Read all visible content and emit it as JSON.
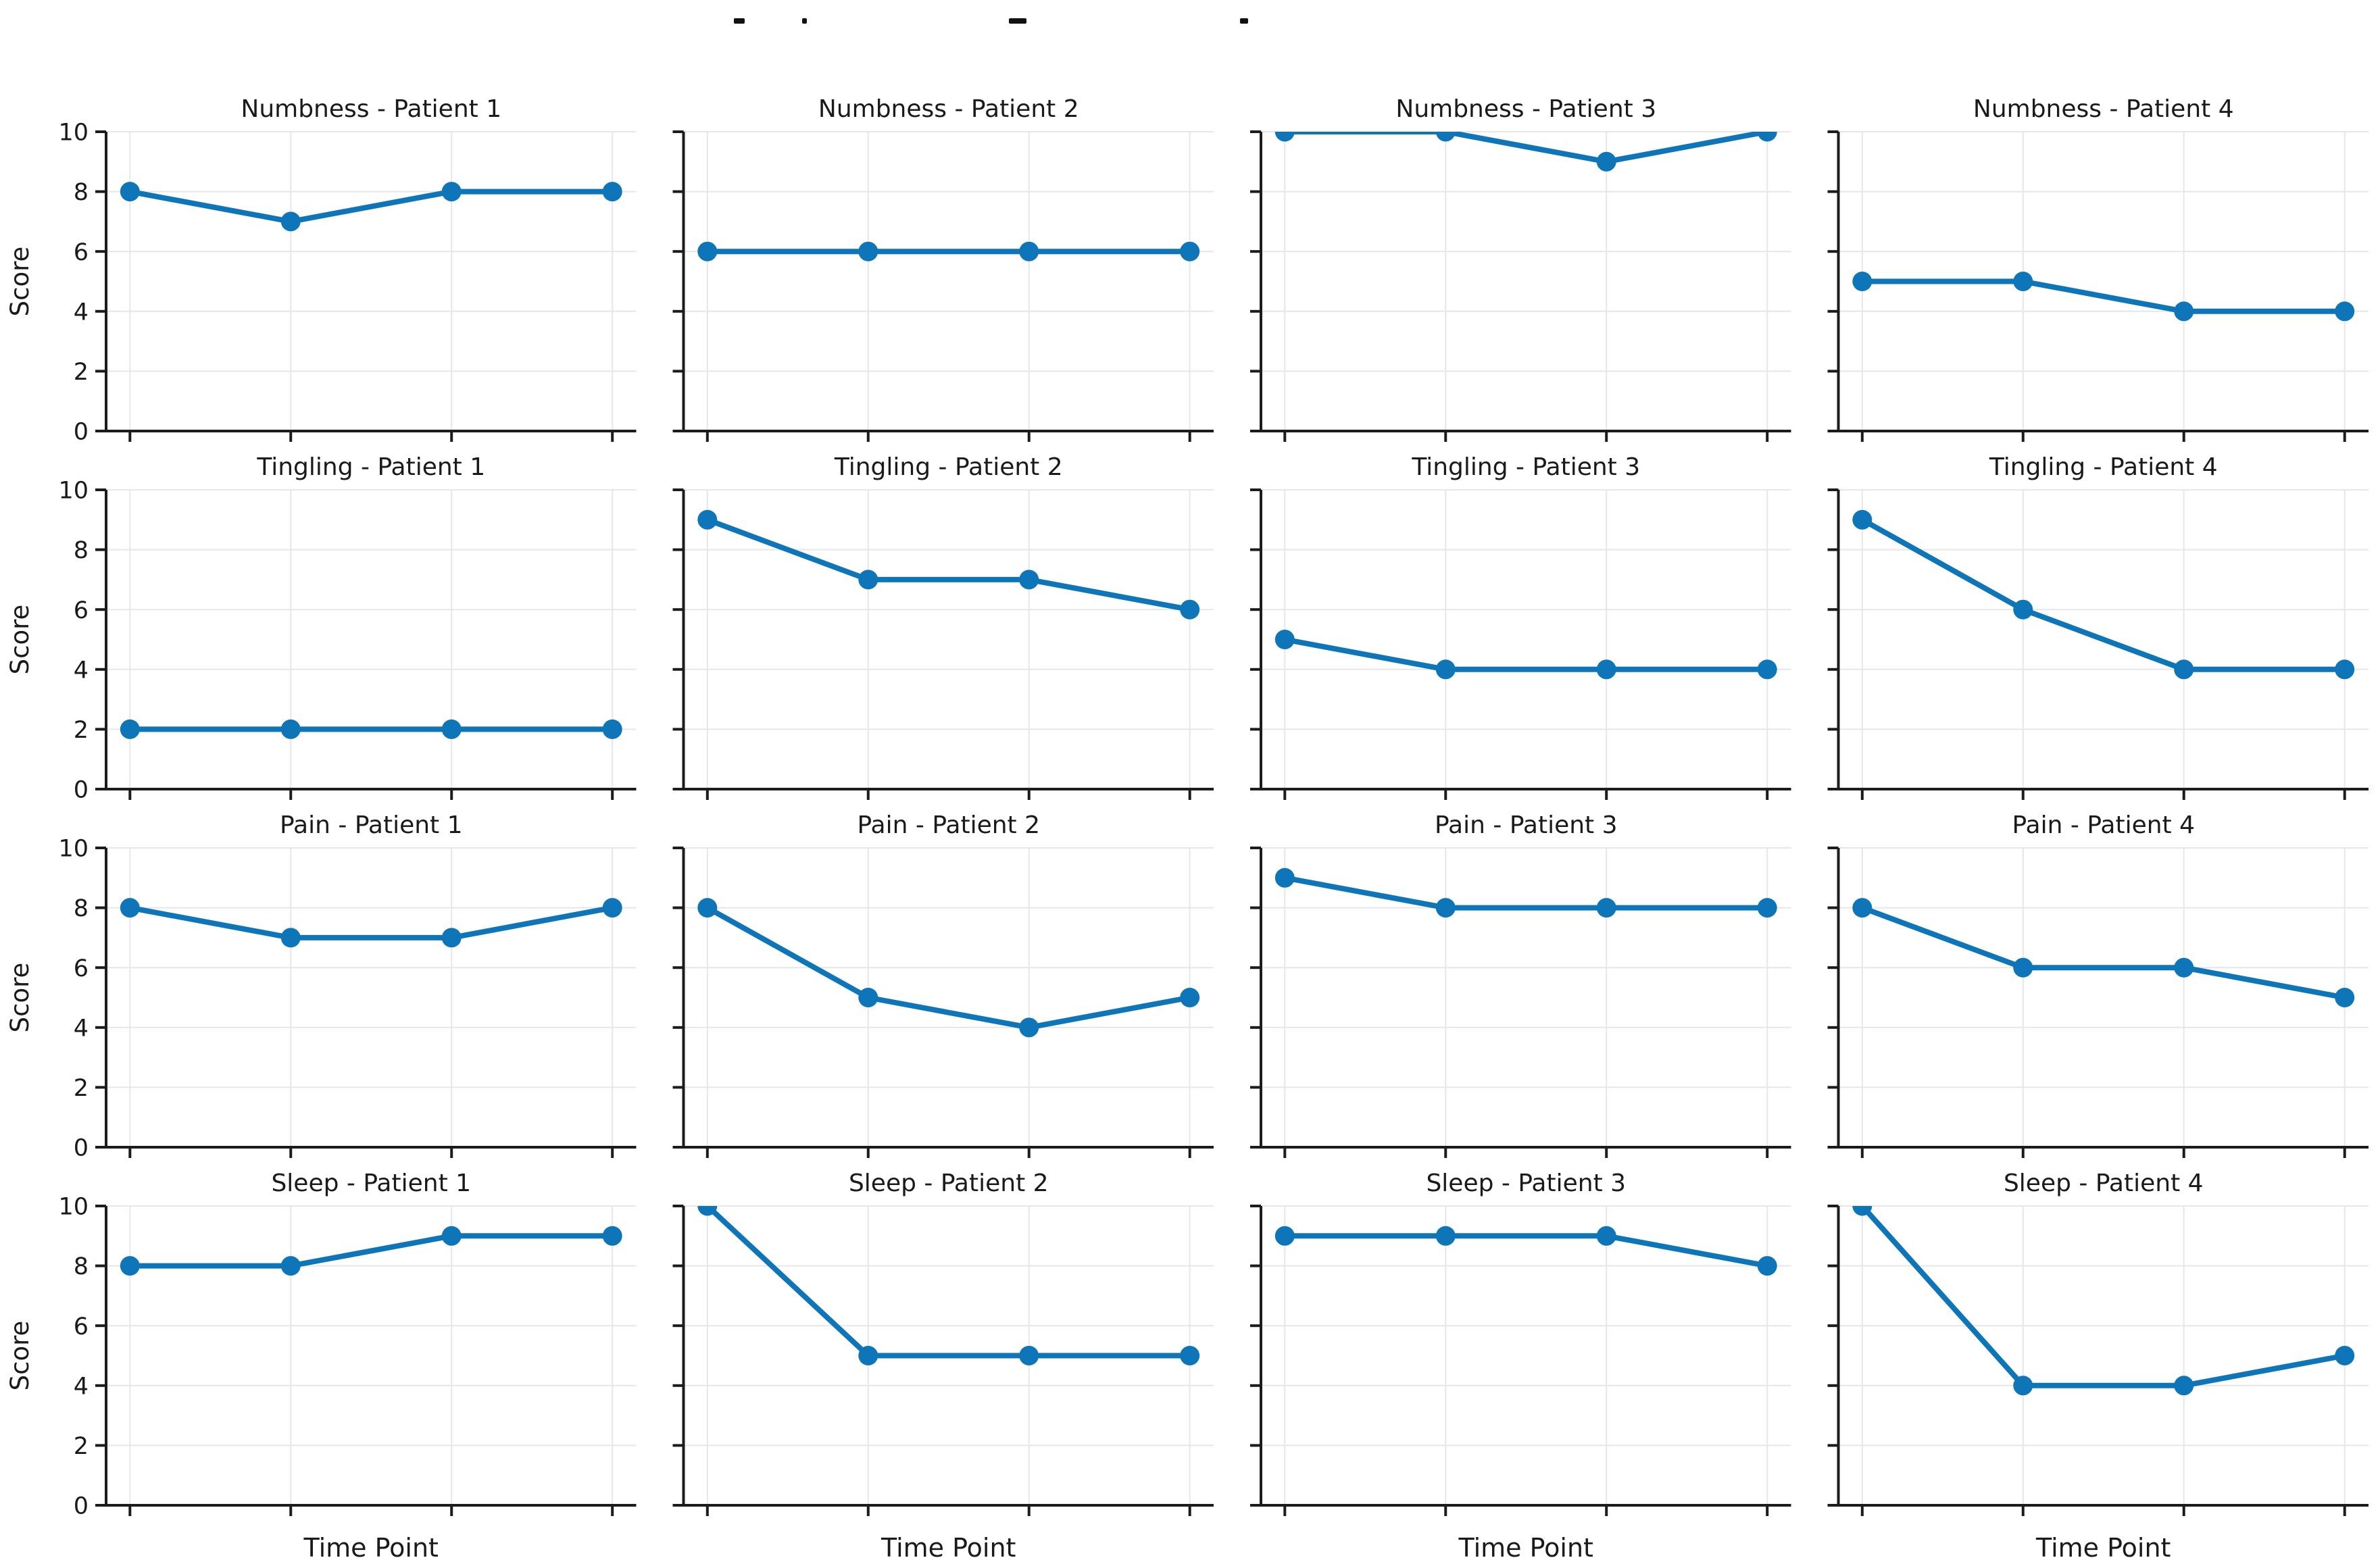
{
  "figure": {
    "background": "#ffffff",
    "suptitle_fragments": {
      "y": 27,
      "height": 8,
      "color": "#111111",
      "items": [
        {
          "x": 1086,
          "width": 16
        },
        {
          "x": 1187,
          "width": 7
        },
        {
          "x": 1493,
          "width": 26
        },
        {
          "x": 1835,
          "width": 12
        }
      ]
    }
  },
  "chart_data": {
    "type": "line",
    "layout": "grid-4x4",
    "rows": [
      "Numbness",
      "Tingling",
      "Pain",
      "Sleep"
    ],
    "cols": [
      "Patient 1",
      "Patient 2",
      "Patient 3",
      "Patient 4"
    ],
    "x_points": 4,
    "x_tick_labels": [],
    "xlabel": "Time Point",
    "ylabel": "Score",
    "yticks": [
      0,
      2,
      4,
      6,
      8,
      10
    ],
    "ylim": [
      0,
      10
    ],
    "grid": true,
    "legend": false,
    "marker": "circle",
    "line_color": "#0e76b8",
    "axis_color": "#1c1c1c",
    "grid_color": "#e7e7e7",
    "text_color": "#1a1a1a",
    "subplots": [
      {
        "title": "Numbness - Patient 1",
        "symptom": "Numbness",
        "patient": "Patient 1",
        "values": [
          8,
          7,
          8,
          8
        ]
      },
      {
        "title": "Numbness - Patient 2",
        "symptom": "Numbness",
        "patient": "Patient 2",
        "values": [
          6,
          6,
          6,
          6
        ]
      },
      {
        "title": "Numbness - Patient 3",
        "symptom": "Numbness",
        "patient": "Patient 3",
        "values": [
          10,
          10,
          9,
          10
        ]
      },
      {
        "title": "Numbness - Patient 4",
        "symptom": "Numbness",
        "patient": "Patient 4",
        "values": [
          5,
          5,
          4,
          4
        ]
      },
      {
        "title": "Tingling - Patient 1",
        "symptom": "Tingling",
        "patient": "Patient 1",
        "values": [
          2,
          2,
          2,
          2
        ]
      },
      {
        "title": "Tingling - Patient 2",
        "symptom": "Tingling",
        "patient": "Patient 2",
        "values": [
          9,
          7,
          7,
          6
        ]
      },
      {
        "title": "Tingling - Patient 3",
        "symptom": "Tingling",
        "patient": "Patient 3",
        "values": [
          5,
          4,
          4,
          4
        ]
      },
      {
        "title": "Tingling - Patient 4",
        "symptom": "Tingling",
        "patient": "Patient 4",
        "values": [
          9,
          6,
          4,
          4
        ]
      },
      {
        "title": "Pain - Patient 1",
        "symptom": "Pain",
        "patient": "Patient 1",
        "values": [
          8,
          7,
          7,
          8
        ]
      },
      {
        "title": "Pain - Patient 2",
        "symptom": "Pain",
        "patient": "Patient 2",
        "values": [
          8,
          5,
          4,
          5
        ]
      },
      {
        "title": "Pain - Patient 3",
        "symptom": "Pain",
        "patient": "Patient 3",
        "values": [
          9,
          8,
          8,
          8
        ]
      },
      {
        "title": "Pain - Patient 4",
        "symptom": "Pain",
        "patient": "Patient 4",
        "values": [
          8,
          6,
          6,
          5
        ]
      },
      {
        "title": "Sleep - Patient 1",
        "symptom": "Sleep",
        "patient": "Patient 1",
        "values": [
          8,
          8,
          9,
          9
        ]
      },
      {
        "title": "Sleep - Patient 2",
        "symptom": "Sleep",
        "patient": "Patient 2",
        "values": [
          10,
          5,
          5,
          5
        ]
      },
      {
        "title": "Sleep - Patient 3",
        "symptom": "Sleep",
        "patient": "Patient 3",
        "values": [
          9,
          9,
          9,
          8
        ]
      },
      {
        "title": "Sleep - Patient 4",
        "symptom": "Sleep",
        "patient": "Patient 4",
        "values": [
          10,
          4,
          4,
          5
        ]
      }
    ]
  }
}
